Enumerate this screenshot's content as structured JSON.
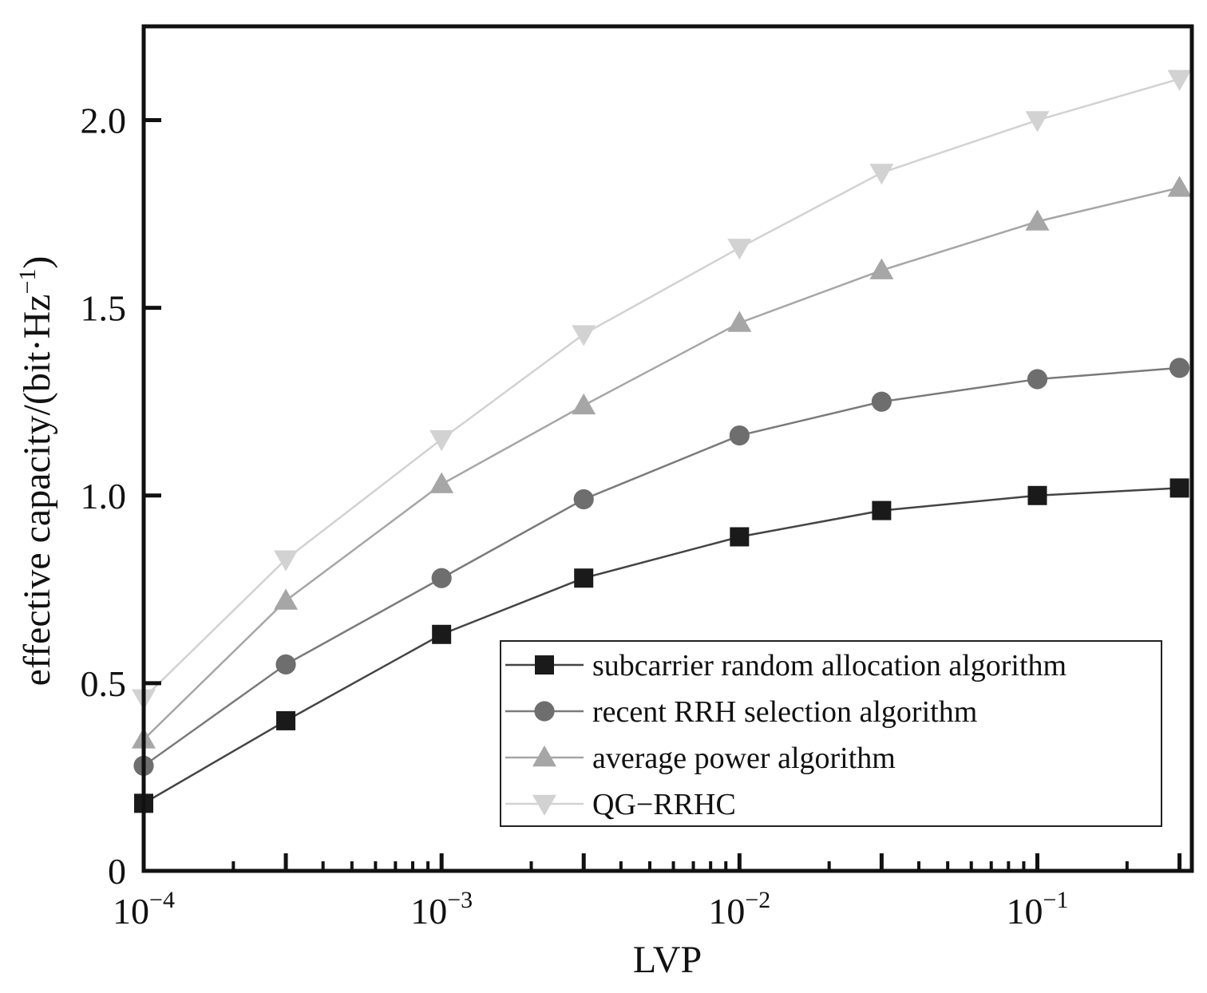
{
  "chart_data": {
    "type": "line",
    "xscale": "log",
    "xlim": [
      0.0001,
      0.33
    ],
    "ylim": [
      0,
      2.25
    ],
    "xlabel": "LVP",
    "ylabel_main": "effective capacity/(bit·Hz",
    "ylabel_sup": "−1",
    "ylabel_close": ")",
    "x": [
      0.0001,
      0.0003,
      0.001,
      0.003,
      0.01,
      0.03,
      0.1,
      0.3
    ],
    "xticks": [
      {
        "value": 0.0001,
        "base": "10",
        "exp": "−4"
      },
      {
        "value": 0.001,
        "base": "10",
        "exp": "−3"
      },
      {
        "value": 0.01,
        "base": "10",
        "exp": "−2"
      },
      {
        "value": 0.1,
        "base": "10",
        "exp": "−1"
      }
    ],
    "yticks": [
      {
        "value": 0,
        "label": "0"
      },
      {
        "value": 0.5,
        "label": "0.5"
      },
      {
        "value": 1.0,
        "label": "1.0"
      },
      {
        "value": 1.5,
        "label": "1.5"
      },
      {
        "value": 2.0,
        "label": "2.0"
      }
    ],
    "series": [
      {
        "name": "subcarrier random allocation algorithm",
        "marker": "square",
        "color": "#1a1a1a",
        "line_color": "#444444",
        "values": [
          0.18,
          0.4,
          0.63,
          0.78,
          0.89,
          0.96,
          1.0,
          1.02
        ]
      },
      {
        "name": "recent RRH selection algorithm",
        "marker": "circle",
        "color": "#6e6e6e",
        "line_color": "#7a7a7a",
        "values": [
          0.28,
          0.55,
          0.78,
          0.99,
          1.16,
          1.25,
          1.31,
          1.34
        ]
      },
      {
        "name": "average power algorithm",
        "marker": "triangle-up",
        "color": "#a6a6a6",
        "line_color": "#a6a6a6",
        "values": [
          0.35,
          0.72,
          1.03,
          1.24,
          1.46,
          1.6,
          1.73,
          1.82
        ]
      },
      {
        "name": "QG−RRHC",
        "marker": "triangle-down",
        "color": "#d2d2d2",
        "line_color": "#d2d2d2",
        "values": [
          0.46,
          0.83,
          1.15,
          1.43,
          1.66,
          1.86,
          2.0,
          2.11
        ]
      }
    ],
    "grid": false,
    "legend_position": "bottom-right"
  }
}
